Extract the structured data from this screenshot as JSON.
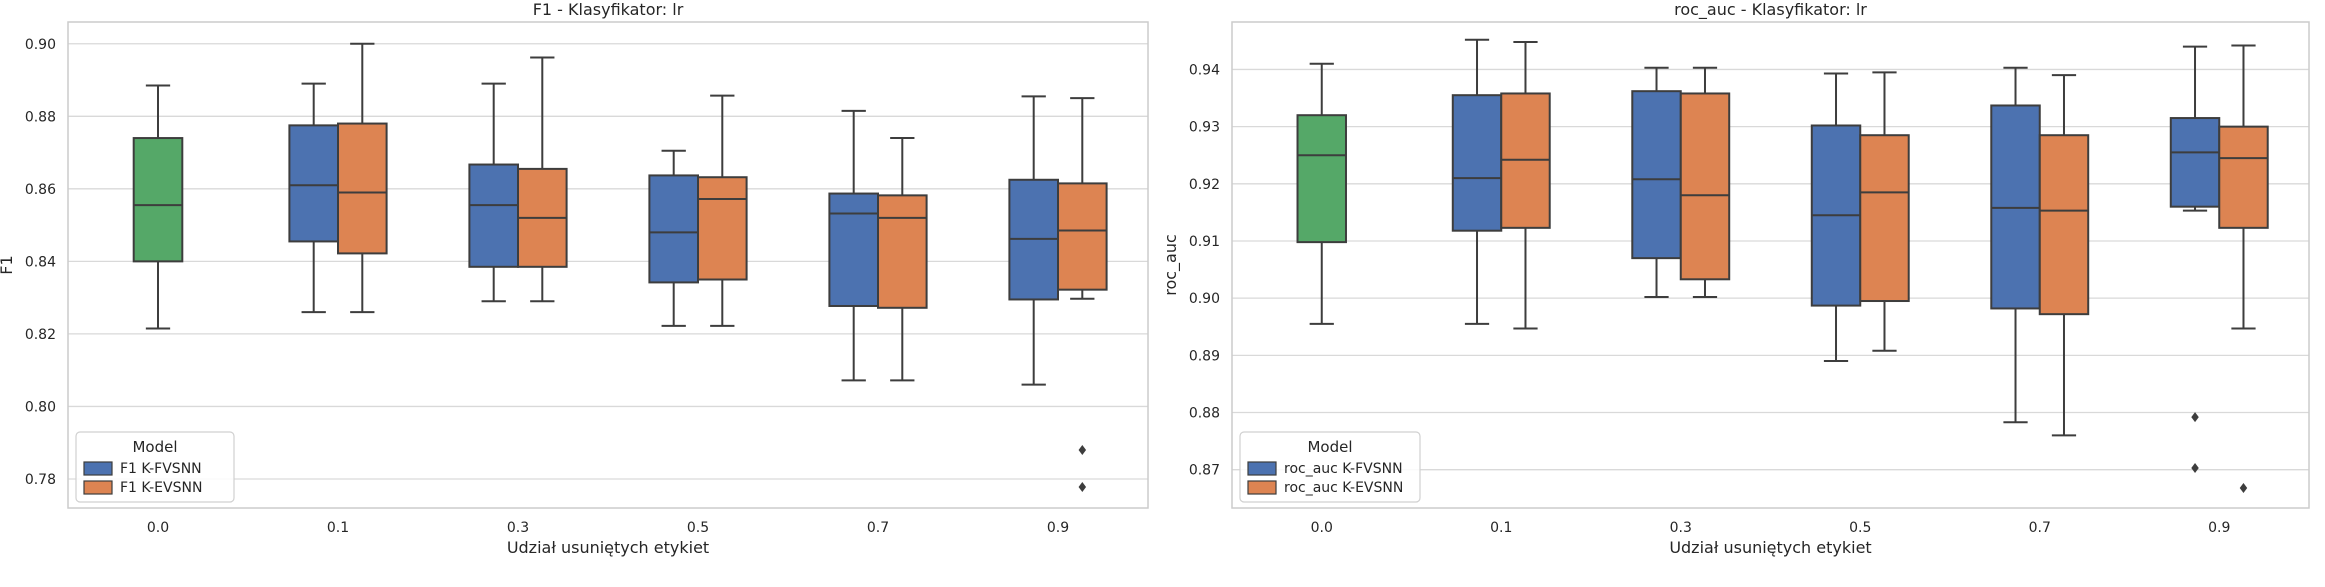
{
  "chart_data": [
    {
      "type": "box",
      "title": "F1 - Klasyfikator: lr",
      "xlabel": "Udział usuniętych etykiet",
      "ylabel": "F1",
      "ylim": [
        0.772,
        0.906
      ],
      "yticks": [
        0.78,
        0.8,
        0.82,
        0.84,
        0.86,
        0.88,
        0.9
      ],
      "ytick_labels": [
        "0.78",
        "0.80",
        "0.82",
        "0.84",
        "0.86",
        "0.88",
        "0.90"
      ],
      "categories": [
        "0.0",
        "0.1",
        "0.3",
        "0.5",
        "0.7",
        "0.9"
      ],
      "grid": true,
      "legend": {
        "title": "Model",
        "position": "lower-left"
      },
      "series": [
        {
          "name": "F1 K-FVSNN",
          "color": "#4c72b0"
        },
        {
          "name": "F1 K-EVSNN",
          "color": "#dd8452"
        }
      ],
      "single_color": "#55a868",
      "boxes": [
        {
          "category": "0.0",
          "series": -1,
          "whislo": 0.8215,
          "q1": 0.84,
          "med": 0.8555,
          "q3": 0.874,
          "whishi": 0.8885,
          "fliers": []
        },
        {
          "category": "0.1",
          "series": 0,
          "whislo": 0.826,
          "q1": 0.8455,
          "med": 0.861,
          "q3": 0.8775,
          "whishi": 0.889,
          "fliers": []
        },
        {
          "category": "0.1",
          "series": 1,
          "whislo": 0.826,
          "q1": 0.8422,
          "med": 0.859,
          "q3": 0.878,
          "whishi": 0.9,
          "fliers": []
        },
        {
          "category": "0.3",
          "series": 0,
          "whislo": 0.829,
          "q1": 0.8385,
          "med": 0.8555,
          "q3": 0.8667,
          "whishi": 0.889,
          "fliers": []
        },
        {
          "category": "0.3",
          "series": 1,
          "whislo": 0.829,
          "q1": 0.8385,
          "med": 0.852,
          "q3": 0.8655,
          "whishi": 0.8962,
          "fliers": []
        },
        {
          "category": "0.5",
          "series": 0,
          "whislo": 0.8222,
          "q1": 0.8342,
          "med": 0.848,
          "q3": 0.8637,
          "whishi": 0.8705,
          "fliers": []
        },
        {
          "category": "0.5",
          "series": 1,
          "whislo": 0.8222,
          "q1": 0.835,
          "med": 0.8572,
          "q3": 0.8632,
          "whishi": 0.8857,
          "fliers": []
        },
        {
          "category": "0.7",
          "series": 0,
          "whislo": 0.8072,
          "q1": 0.8277,
          "med": 0.8532,
          "q3": 0.8587,
          "whishi": 0.8815,
          "fliers": []
        },
        {
          "category": "0.7",
          "series": 1,
          "whislo": 0.8072,
          "q1": 0.8272,
          "med": 0.852,
          "q3": 0.8582,
          "whishi": 0.874,
          "fliers": []
        },
        {
          "category": "0.9",
          "series": 0,
          "whislo": 0.806,
          "q1": 0.8295,
          "med": 0.8462,
          "q3": 0.8625,
          "whishi": 0.8855,
          "fliers": []
        },
        {
          "category": "0.9",
          "series": 1,
          "whislo": 0.8297,
          "q1": 0.8322,
          "med": 0.8485,
          "q3": 0.8615,
          "whishi": 0.885,
          "fliers": [
            0.788,
            0.7778
          ]
        }
      ]
    },
    {
      "type": "box",
      "title": "roc_auc - Klasyfikator: lr",
      "xlabel": "Udział usuniętych etykiet",
      "ylabel": "roc_auc",
      "ylim": [
        0.8633,
        0.9483
      ],
      "yticks": [
        0.87,
        0.88,
        0.89,
        0.9,
        0.91,
        0.92,
        0.93,
        0.94
      ],
      "ytick_labels": [
        "0.87",
        "0.88",
        "0.89",
        "0.90",
        "0.91",
        "0.92",
        "0.93",
        "0.94"
      ],
      "categories": [
        "0.0",
        "0.1",
        "0.3",
        "0.5",
        "0.7",
        "0.9"
      ],
      "grid": true,
      "legend": {
        "title": "Model",
        "position": "lower-left"
      },
      "series": [
        {
          "name": "roc_auc K-FVSNN",
          "color": "#4c72b0"
        },
        {
          "name": "roc_auc K-EVSNN",
          "color": "#dd8452"
        }
      ],
      "single_color": "#55a868",
      "boxes": [
        {
          "category": "0.0",
          "series": -1,
          "whislo": 0.8955,
          "q1": 0.9098,
          "med": 0.925,
          "q3": 0.932,
          "whishi": 0.941,
          "fliers": []
        },
        {
          "category": "0.1",
          "series": 0,
          "whislo": 0.8955,
          "q1": 0.9118,
          "med": 0.921,
          "q3": 0.9355,
          "whishi": 0.9452,
          "fliers": []
        },
        {
          "category": "0.1",
          "series": 1,
          "whislo": 0.8947,
          "q1": 0.9123,
          "med": 0.9242,
          "q3": 0.9358,
          "whishi": 0.9448,
          "fliers": []
        },
        {
          "category": "0.3",
          "series": 0,
          "whislo": 0.9002,
          "q1": 0.907,
          "med": 0.9208,
          "q3": 0.9362,
          "whishi": 0.9403,
          "fliers": []
        },
        {
          "category": "0.3",
          "series": 1,
          "whislo": 0.9002,
          "q1": 0.9033,
          "med": 0.918,
          "q3": 0.9358,
          "whishi": 0.9403,
          "fliers": []
        },
        {
          "category": "0.5",
          "series": 0,
          "whislo": 0.889,
          "q1": 0.8987,
          "med": 0.9145,
          "q3": 0.9302,
          "whishi": 0.9393,
          "fliers": []
        },
        {
          "category": "0.5",
          "series": 1,
          "whislo": 0.8908,
          "q1": 0.8995,
          "med": 0.9185,
          "q3": 0.9285,
          "whishi": 0.9395,
          "fliers": []
        },
        {
          "category": "0.7",
          "series": 0,
          "whislo": 0.8783,
          "q1": 0.8982,
          "med": 0.9158,
          "q3": 0.9337,
          "whishi": 0.9403,
          "fliers": []
        },
        {
          "category": "0.7",
          "series": 1,
          "whislo": 0.876,
          "q1": 0.8972,
          "med": 0.9153,
          "q3": 0.9285,
          "whishi": 0.939,
          "fliers": []
        },
        {
          "category": "0.9",
          "series": 0,
          "whislo": 0.9153,
          "q1": 0.916,
          "med": 0.9255,
          "q3": 0.9315,
          "whishi": 0.944,
          "fliers": [
            0.8792,
            0.8703
          ]
        },
        {
          "category": "0.9",
          "series": 1,
          "whislo": 0.8947,
          "q1": 0.9123,
          "med": 0.9245,
          "q3": 0.93,
          "whishi": 0.9442,
          "fliers": [
            0.8668
          ]
        }
      ]
    }
  ]
}
